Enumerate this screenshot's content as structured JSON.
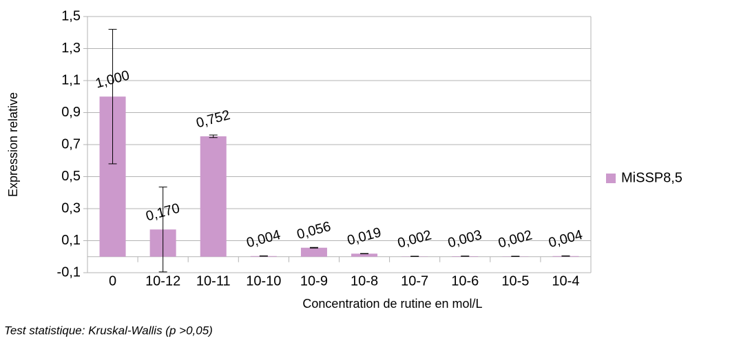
{
  "chart_data": {
    "type": "bar",
    "x_label": "Concentration de rutine en mol/L",
    "y_label": "Expression relative",
    "footnote": "Test statistique: Kruskal-Wallis (p >0,05)",
    "categories": [
      "0",
      "10-12",
      "10-11",
      "10-10",
      "10-9",
      "10-8",
      "10-7",
      "10-6",
      "10-5",
      "10-4"
    ],
    "series": [
      {
        "name": "MiSSP8,5",
        "color": "#cc99cc",
        "values": [
          1.0,
          0.17,
          0.752,
          0.004,
          0.056,
          0.019,
          0.002,
          0.003,
          0.002,
          0.004
        ],
        "value_labels": [
          "1,000",
          "0,170",
          "0,752",
          "0,004",
          "0,056",
          "0,019",
          "0,002",
          "0,003",
          "0,002",
          "0,004"
        ],
        "errors": [
          0.42,
          0.265,
          0.008,
          0.001,
          0.002,
          0.001,
          0.001,
          0.001,
          0.001,
          0.001
        ]
      }
    ],
    "ylim": [
      -0.1,
      1.5
    ],
    "yticks": [
      {
        "value": -0.1,
        "label": "-0,1"
      },
      {
        "value": 0.1,
        "label": "0,1"
      },
      {
        "value": 0.3,
        "label": "0,3"
      },
      {
        "value": 0.5,
        "label": "0,5"
      },
      {
        "value": 0.7,
        "label": "0,7"
      },
      {
        "value": 0.9,
        "label": "0,9"
      },
      {
        "value": 1.1,
        "label": "1,1"
      },
      {
        "value": 1.3,
        "label": "1,3"
      },
      {
        "value": 1.5,
        "label": "1,5"
      }
    ],
    "grid": true,
    "legend": "right"
  }
}
